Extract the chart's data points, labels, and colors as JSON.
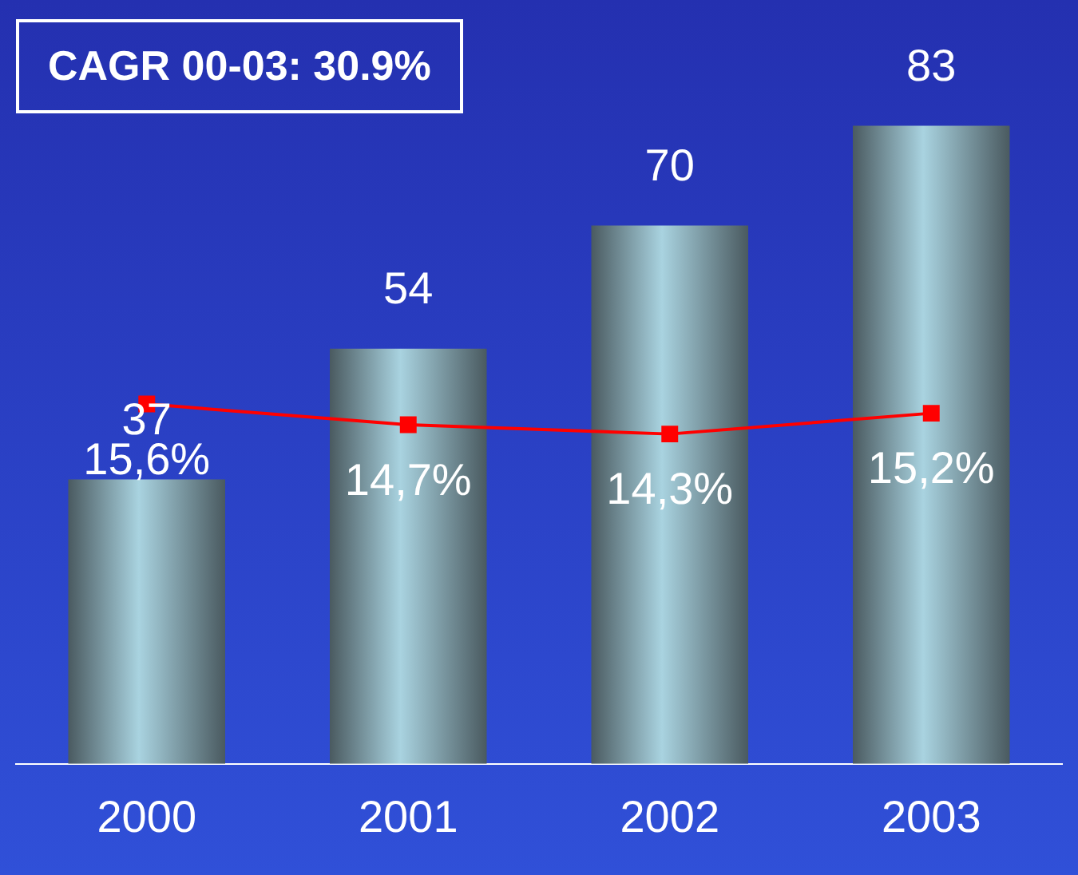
{
  "chart_data": {
    "type": "bar",
    "categories": [
      "2000",
      "2001",
      "2002",
      "2003"
    ],
    "series": [
      {
        "color": "#a9d3e0",
        "values": [
          37,
          54,
          70,
          83
        ],
        "value_labels": [
          "37",
          "54",
          "70",
          "83"
        ]
      },
      {
        "type": "line",
        "axis": "y2",
        "color": "#ff0000",
        "marker": "square",
        "values": [
          15.6,
          14.7,
          14.3,
          15.2
        ],
        "value_labels": [
          "15,6%",
          "14,7%",
          "14,3%",
          "15,2%"
        ]
      }
    ],
    "annotations": [
      "CAGR 00-03: 30.9%"
    ],
    "grid": false,
    "legend": false,
    "tick_labels": "x"
  }
}
